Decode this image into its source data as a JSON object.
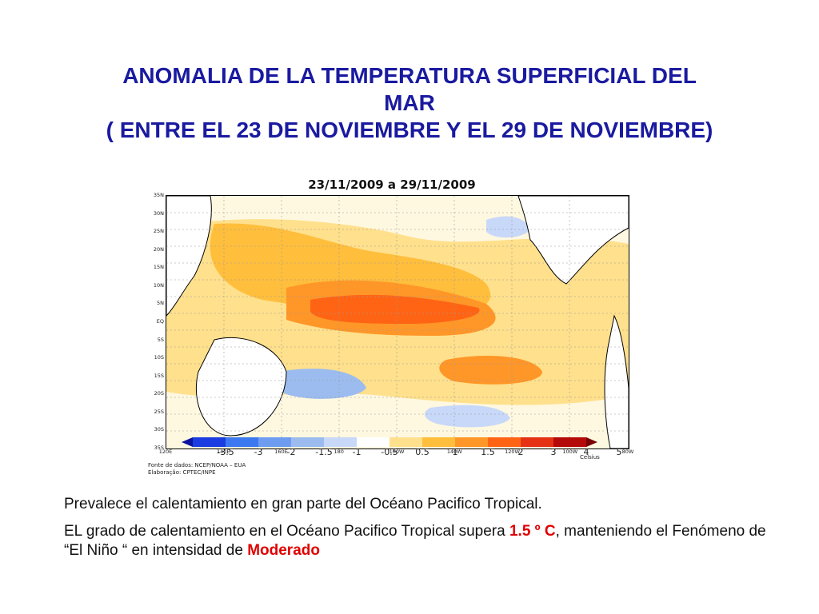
{
  "title": {
    "line1": "ANOMALIA DE LA TEMPERATURA SUPERFICIAL DEL",
    "line2": "MAR",
    "line3": "( ENTRE EL 23 DE NOVIEMBRE Y EL 29 DE NOVIEMBRE)"
  },
  "figure": {
    "title": "23/11/2009 a 29/11/2009",
    "lat_labels": [
      "35N",
      "30N",
      "25N",
      "20N",
      "15N",
      "10N",
      "5N",
      "EQ",
      "5S",
      "10S",
      "15S",
      "20S",
      "25S",
      "30S",
      "35S"
    ],
    "lon_labels": [
      "120E",
      "140E",
      "160E",
      "180",
      "160W",
      "140W",
      "120W",
      "100W",
      "80W"
    ],
    "colorbar_ticks": [
      "-3.5",
      "-3",
      "-2",
      "-1.5",
      "-1",
      "-0.5",
      "0.5",
      "1",
      "1.5",
      "2",
      "3",
      "4",
      "5"
    ],
    "colorbar_unit": "Celsius",
    "colors": [
      "#0a14a0",
      "#1a3ce0",
      "#3c78f0",
      "#6e9cf0",
      "#9cbcf0",
      "#c8d8f8",
      "#ffffff",
      "#ffe08c",
      "#ffbe3c",
      "#ff9628",
      "#ff6414",
      "#e63214",
      "#b40a0a",
      "#780000"
    ],
    "source_line1": "Fonte de dados: NCEP/NOAA – EUA",
    "source_line2": "Elaboração: CPTEC/INPE"
  },
  "text": {
    "p1": "Prevalece el calentamiento en gran parte del Océano Pacifico Tropical.",
    "p2_before": "EL grado de calentamiento en el Océano Pacifico Tropical supera",
    "p2_value": "1.5 º C",
    "p2_after": "manteniendo el Fenómeno de “El Niño “ en intensidad de",
    "p2_intensity": "Moderado"
  }
}
